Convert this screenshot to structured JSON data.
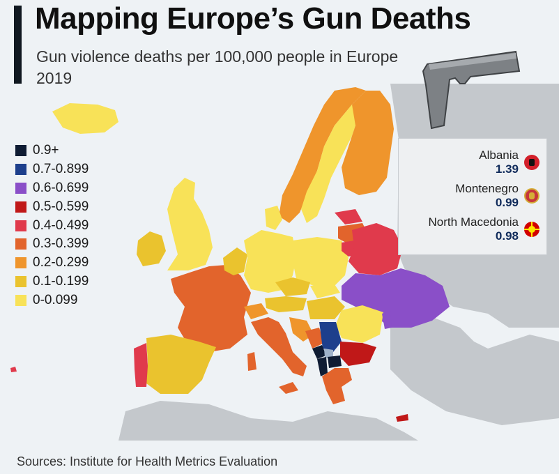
{
  "title": "Mapping Europe’s Gun Deaths",
  "subtitle": "Gun violence deaths per 100,000 people in Europe 2019",
  "legend": [
    {
      "label": "0.9+",
      "color": "#0f1c33"
    },
    {
      "label": "0.7-0.899",
      "color": "#1d3f8c"
    },
    {
      "label": "0.6-0.699",
      "color": "#8a4fc8"
    },
    {
      "label": "0.5-0.599",
      "color": "#c01818"
    },
    {
      "label": "0.4-0.499",
      "color": "#e03a4c"
    },
    {
      "label": "0.3-0.399",
      "color": "#e2642c"
    },
    {
      "label": "0.2-0.299",
      "color": "#ef952c"
    },
    {
      "label": "0.1-0.199",
      "color": "#eac32e"
    },
    {
      "label": "0-0.099",
      "color": "#f8e258"
    }
  ],
  "callouts": [
    {
      "country": "Albania",
      "value": "1.39",
      "flag": "albania-flag-icon"
    },
    {
      "country": "Montenegro",
      "value": "0.99",
      "flag": "montenegro-flag-icon"
    },
    {
      "country": "North Macedonia",
      "value": "0.98",
      "flag": "north-macedonia-flag-icon"
    }
  ],
  "icons": {
    "pistol": "pistol-icon"
  },
  "source": "Sources: Institute for Health Metrics Evaluation"
}
